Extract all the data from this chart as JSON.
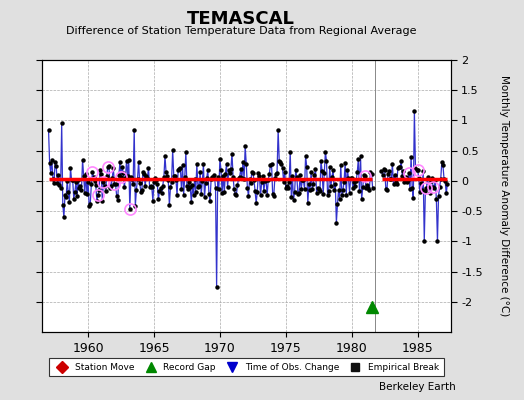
{
  "title": "TEMASCAL",
  "subtitle": "Difference of Station Temperature Data from Regional Average",
  "ylabel": "Monthly Temperature Anomaly Difference (°C)",
  "xlim": [
    1956.5,
    1987.5
  ],
  "ylim": [
    -2.5,
    2.0
  ],
  "yticks": [
    -2.0,
    -1.5,
    -1.0,
    -0.5,
    0.0,
    0.5,
    1.0,
    1.5,
    2.0
  ],
  "xticks": [
    1960,
    1965,
    1970,
    1975,
    1980,
    1985
  ],
  "bias_value": 0.03,
  "bias_start": 1957.0,
  "bias_end": 1981.5,
  "bias2_start": 1982.3,
  "bias2_end": 1987.2,
  "break_x": 1981.75,
  "record_gap_x": 1981.5,
  "record_gap_y": -2.08,
  "bg_color": "#e0e0e0",
  "plot_bg": "#ffffff",
  "line_color": "#3333cc",
  "bias_color": "#ff0000",
  "qc_color": "#ff88ff",
  "note": "Berkeley Earth",
  "seed": 42
}
